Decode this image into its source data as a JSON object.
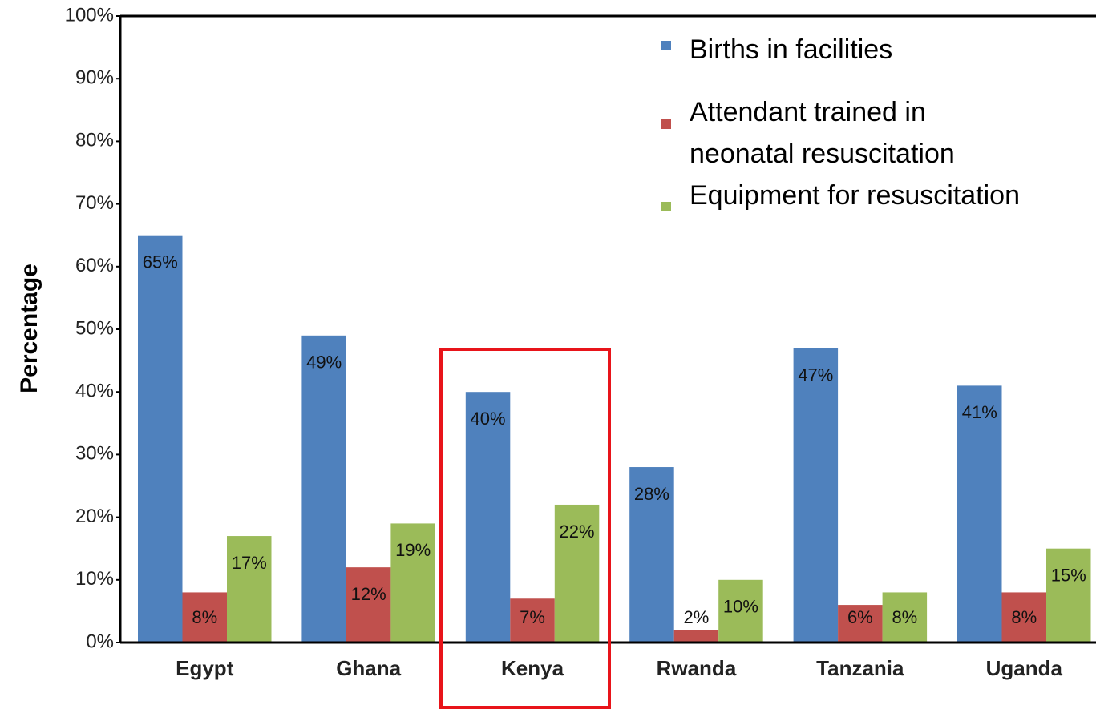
{
  "chart_data": {
    "type": "bar",
    "ylabel": "Percentage",
    "categories": [
      "Egypt",
      "Ghana",
      "Kenya",
      "Rwanda",
      "Tanzania",
      "Uganda"
    ],
    "series": [
      {
        "name": "Births in facilities",
        "color": "#4f81bd",
        "values": [
          65,
          49,
          40,
          28,
          47,
          41
        ],
        "value_labels": [
          "65%",
          "49%",
          "40%",
          "28%",
          "47%",
          "41%"
        ]
      },
      {
        "name": "Attendant trained in neonatal resuscitation",
        "color": "#c0504d",
        "values": [
          8,
          12,
          7,
          2,
          6,
          8
        ],
        "value_labels": [
          "8%",
          "12%",
          "7%",
          "2%",
          "6%",
          "8%"
        ]
      },
      {
        "name": "Equipment for resuscitation",
        "color": "#9bbb59",
        "values": [
          17,
          19,
          22,
          10,
          8,
          15
        ],
        "value_labels": [
          "17%",
          "19%",
          "22%",
          "10%",
          "8%",
          "15%"
        ]
      }
    ],
    "ylim": [
      0,
      100
    ],
    "yticks": [
      {
        "value": 0,
        "label": "0%"
      },
      {
        "value": 10,
        "label": "10%"
      },
      {
        "value": 20,
        "label": "20%"
      },
      {
        "value": 30,
        "label": "30%"
      },
      {
        "value": 40,
        "label": "40%"
      },
      {
        "value": 50,
        "label": "50%"
      },
      {
        "value": 60,
        "label": "60%"
      },
      {
        "value": 70,
        "label": "70%"
      },
      {
        "value": 80,
        "label": "80%"
      },
      {
        "value": 90,
        "label": "90%"
      },
      {
        "value": 100,
        "label": "100%"
      }
    ],
    "grid": false
  }
}
